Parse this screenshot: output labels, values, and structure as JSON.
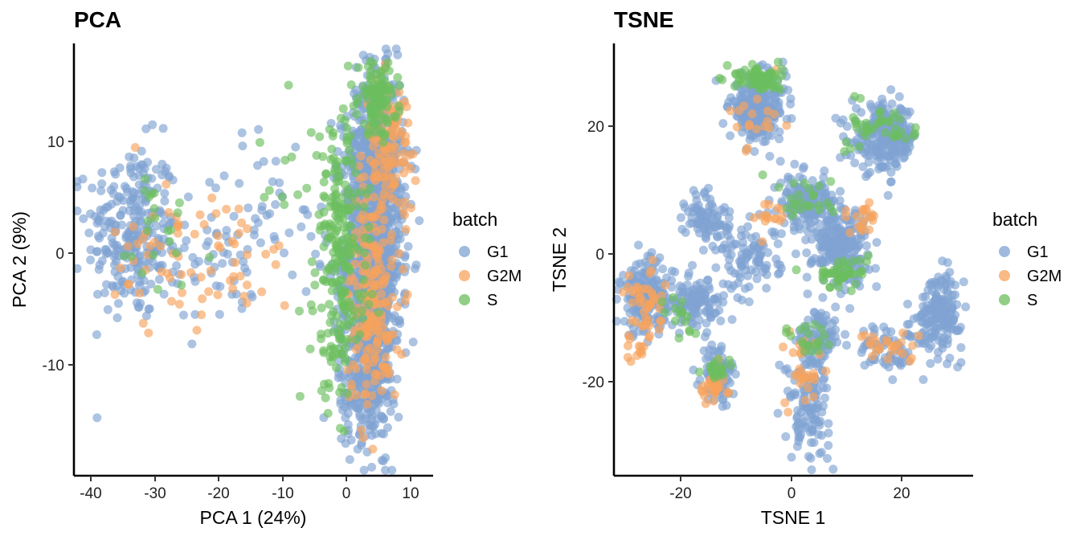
{
  "chart_data": [
    {
      "type": "scatter",
      "title": "PCA",
      "xlabel": "PCA 1 (24%)",
      "ylabel": "PCA 2 (9%)",
      "xlim": [
        -42,
        13.5
      ],
      "ylim": [
        -20,
        19
      ],
      "xticks": [
        -40,
        -30,
        -20,
        -10,
        0,
        10
      ],
      "xtick_labels": [
        "-40",
        "-30",
        "-20",
        "-10",
        "0",
        "10"
      ],
      "yticks": [
        -10,
        0,
        10
      ],
      "ytick_labels": [
        "-10",
        "0",
        "10"
      ],
      "grid": false,
      "legend": {
        "title": "batch",
        "position": "right",
        "labels": [
          "G1",
          "G2M",
          "S"
        ]
      },
      "series": [
        {
          "name": "G1",
          "color": "#7fa3d3",
          "clusters": [
            {
              "cx": -33,
              "cy": 2,
              "sx": 3.5,
              "sy": 4,
              "n": 260
            },
            {
              "cx": -20,
              "cy": 0,
              "sx": 5,
              "sy": 3.5,
              "n": 60
            },
            {
              "cx": -10,
              "cy": 4,
              "sx": 4,
              "sy": 4,
              "n": 40
            },
            {
              "cx": 4,
              "cy": 0,
              "sx": 2.3,
              "sy": 7,
              "n": 1100
            },
            {
              "cx": 5,
              "cy": 8,
              "sx": 2,
              "sy": 4,
              "n": 300
            },
            {
              "cx": 3,
              "cy": -12,
              "sx": 2,
              "sy": 2.5,
              "n": 140
            }
          ]
        },
        {
          "name": "G2M",
          "color": "#f8a35c",
          "clusters": [
            {
              "cx": -28,
              "cy": 0,
              "sx": 4,
              "sy": 3.5,
              "n": 45
            },
            {
              "cx": -16,
              "cy": -1,
              "sx": 4,
              "sy": 3,
              "n": 30
            },
            {
              "cx": 4,
              "cy": -6,
              "sx": 2,
              "sy": 4,
              "n": 130
            },
            {
              "cx": 7,
              "cy": 10,
              "sx": 2,
              "sy": 3,
              "n": 110
            },
            {
              "cx": 4,
              "cy": 0,
              "sx": 2,
              "sy": 5,
              "n": 80
            }
          ]
        },
        {
          "name": "S",
          "color": "#6cbf5d",
          "clusters": [
            {
              "cx": -1,
              "cy": 3,
              "sx": 2,
              "sy": 5,
              "n": 150
            },
            {
              "cx": -1,
              "cy": -6,
              "sx": 2,
              "sy": 4,
              "n": 90
            },
            {
              "cx": 5,
              "cy": 14,
              "sx": 1.5,
              "sy": 1.6,
              "n": 110
            },
            {
              "cx": -30,
              "cy": 2,
              "sx": 4,
              "sy": 4,
              "n": 22
            },
            {
              "cx": -10,
              "cy": 5,
              "sx": 4,
              "sy": 4,
              "n": 10
            }
          ]
        }
      ]
    },
    {
      "type": "scatter",
      "title": "TSNE",
      "xlabel": "TSNE 1",
      "ylabel": "TSNE 2",
      "xlim": [
        -32,
        33
      ],
      "ylim": [
        -35,
        33
      ],
      "xticks": [
        -20,
        0,
        20
      ],
      "xtick_labels": [
        "-20",
        "0",
        "20"
      ],
      "yticks": [
        -20,
        0,
        20
      ],
      "ytick_labels": [
        "-20",
        "0",
        "20"
      ],
      "grid": false,
      "legend": {
        "title": "batch",
        "position": "right",
        "labels": [
          "G1",
          "G2M",
          "S"
        ]
      },
      "series": [
        {
          "name": "G1",
          "color": "#7fa3d3",
          "clusters": [
            {
              "cx": -6,
              "cy": 23,
              "sx": 2.5,
              "sy": 2.5,
              "n": 260
            },
            {
              "cx": 17,
              "cy": 18,
              "sx": 3,
              "sy": 2.6,
              "n": 240
            },
            {
              "cx": 3,
              "cy": 8,
              "sx": 2.6,
              "sy": 2,
              "n": 160
            },
            {
              "cx": 9,
              "cy": 1,
              "sx": 2.5,
              "sy": 3,
              "n": 220
            },
            {
              "cx": -15,
              "cy": 5,
              "sx": 2,
              "sy": 2.5,
              "n": 90
            },
            {
              "cx": -7,
              "cy": -1,
              "sx": 2.6,
              "sy": 2.5,
              "n": 90
            },
            {
              "cx": -26,
              "cy": -7,
              "sx": 2.5,
              "sy": 3,
              "n": 160
            },
            {
              "cx": -17,
              "cy": -8,
              "sx": 2.5,
              "sy": 1.8,
              "n": 110
            },
            {
              "cx": -13,
              "cy": -19,
              "sx": 1.5,
              "sy": 2.5,
              "n": 80
            },
            {
              "cx": 5,
              "cy": -14,
              "sx": 2,
              "sy": 2.5,
              "n": 90
            },
            {
              "cx": 3,
              "cy": -24,
              "sx": 2,
              "sy": 4,
              "n": 110
            },
            {
              "cx": 27,
              "cy": -9,
              "sx": 2,
              "sy": 3,
              "n": 170
            },
            {
              "cx": 18,
              "cy": -15,
              "sx": 3,
              "sy": 1.8,
              "n": 70
            }
          ]
        },
        {
          "name": "G2M",
          "color": "#f8a35c",
          "clusters": [
            {
              "cx": -27,
              "cy": -8,
              "sx": 2,
              "sy": 3,
              "n": 45
            },
            {
              "cx": -14,
              "cy": -21,
              "sx": 1.3,
              "sy": 1.3,
              "n": 30
            },
            {
              "cx": 13,
              "cy": 5,
              "sx": 1.5,
              "sy": 1.5,
              "n": 20
            },
            {
              "cx": 3,
              "cy": -18,
              "sx": 2,
              "sy": 3,
              "n": 30
            },
            {
              "cx": 18,
              "cy": -15,
              "sx": 3,
              "sy": 1.5,
              "n": 25
            },
            {
              "cx": -6,
              "cy": 22,
              "sx": 2.5,
              "sy": 2.5,
              "n": 18
            },
            {
              "cx": -5,
              "cy": 6,
              "sx": 1.5,
              "sy": 1.5,
              "n": 15
            },
            {
              "cx": -28,
              "cy": -15,
              "sx": 1.5,
              "sy": 1.5,
              "n": 12
            }
          ]
        },
        {
          "name": "S",
          "color": "#6cbf5d",
          "clusters": [
            {
              "cx": -6,
              "cy": 27.5,
              "sx": 2.2,
              "sy": 1.0,
              "n": 70
            },
            {
              "cx": 17,
              "cy": 20,
              "sx": 3,
              "sy": 2,
              "n": 40
            },
            {
              "cx": 9,
              "cy": -3,
              "sx": 2.5,
              "sy": 1.2,
              "n": 45
            },
            {
              "cx": 3,
              "cy": 8,
              "sx": 2.5,
              "sy": 2,
              "n": 25
            },
            {
              "cx": -13,
              "cy": -18,
              "sx": 1.3,
              "sy": 1.3,
              "n": 20
            },
            {
              "cx": 4,
              "cy": -14,
              "sx": 2,
              "sy": 2,
              "n": 20
            },
            {
              "cx": -20,
              "cy": -10,
              "sx": 2,
              "sy": 2,
              "n": 15
            }
          ]
        }
      ]
    }
  ]
}
